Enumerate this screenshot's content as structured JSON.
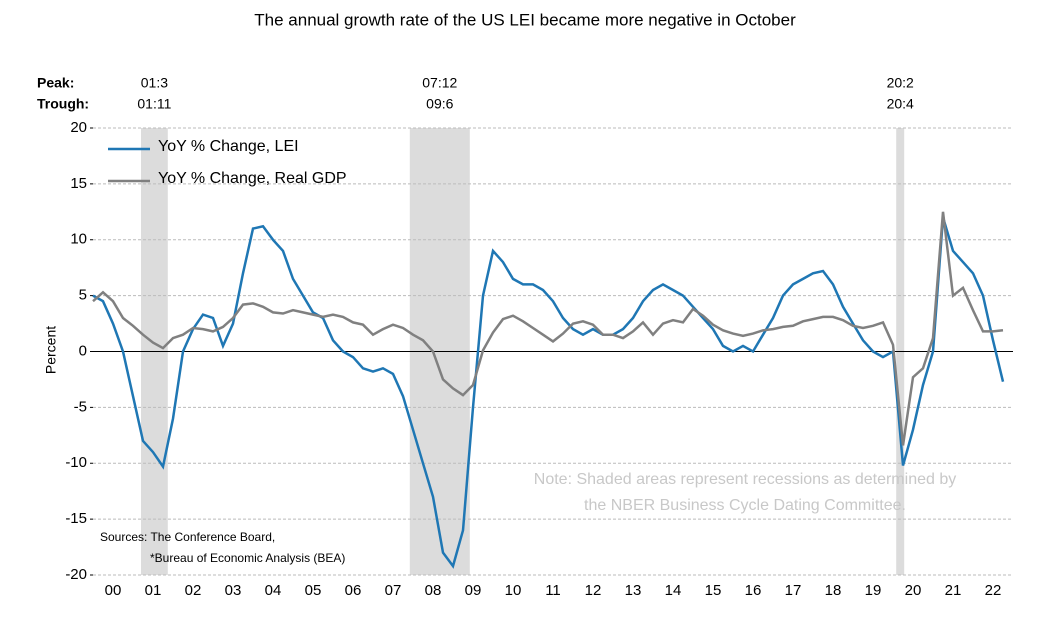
{
  "chart_data": {
    "type": "line",
    "title": "The annual growth rate of the US LEI became more negative in October",
    "y_label": "Percent",
    "peak_label": "Peak:",
    "trough_label": "Trough:",
    "recessions": [
      {
        "start": 2001.2,
        "end": 2001.87,
        "peak": "01:3",
        "trough": "01:11"
      },
      {
        "start": 2007.92,
        "end": 2009.42,
        "peak": "07:12",
        "trough": "09:6"
      },
      {
        "start": 2020.08,
        "end": 2020.28,
        "peak": "20:2",
        "trough": "20:4"
      }
    ],
    "note": [
      "Note: Shaded areas represent recessions as determined by",
      "the NBER Business Cycle Dating Committee."
    ],
    "sources": [
      "Sources: The Conference Board,",
      "*Bureau of Economic Analysis (BEA)"
    ],
    "xlim": [
      2000,
      2023
    ],
    "xticks": [
      {
        "value": 2000.5,
        "label": "00"
      },
      {
        "value": 2001.5,
        "label": "01"
      },
      {
        "value": 2002.5,
        "label": "02"
      },
      {
        "value": 2003.5,
        "label": "03"
      },
      {
        "value": 2004.5,
        "label": "04"
      },
      {
        "value": 2005.5,
        "label": "05"
      },
      {
        "value": 2006.5,
        "label": "06"
      },
      {
        "value": 2007.5,
        "label": "07"
      },
      {
        "value": 2008.5,
        "label": "08"
      },
      {
        "value": 2009.5,
        "label": "09"
      },
      {
        "value": 2010.5,
        "label": "10"
      },
      {
        "value": 2011.5,
        "label": "11"
      },
      {
        "value": 2012.5,
        "label": "12"
      },
      {
        "value": 2013.5,
        "label": "13"
      },
      {
        "value": 2014.5,
        "label": "14"
      },
      {
        "value": 2015.5,
        "label": "15"
      },
      {
        "value": 2016.5,
        "label": "16"
      },
      {
        "value": 2017.5,
        "label": "17"
      },
      {
        "value": 2018.5,
        "label": "18"
      },
      {
        "value": 2019.5,
        "label": "19"
      },
      {
        "value": 2020.5,
        "label": "20"
      },
      {
        "value": 2021.5,
        "label": "21"
      },
      {
        "value": 2022.5,
        "label": "22"
      }
    ],
    "ylim": [
      -20,
      20
    ],
    "yticks": [
      -20,
      -15,
      -10,
      -5,
      0,
      5,
      10,
      15,
      20
    ],
    "grid": true,
    "x": [
      2000,
      2000.25,
      2000.5,
      2000.75,
      2001,
      2001.25,
      2001.5,
      2001.75,
      2002,
      2002.25,
      2002.5,
      2002.75,
      2003,
      2003.25,
      2003.5,
      2003.75,
      2004,
      2004.25,
      2004.5,
      2004.75,
      2005,
      2005.25,
      2005.5,
      2005.75,
      2006,
      2006.25,
      2006.5,
      2006.75,
      2007,
      2007.25,
      2007.5,
      2007.75,
      2008,
      2008.25,
      2008.5,
      2008.75,
      2009,
      2009.25,
      2009.5,
      2009.75,
      2010,
      2010.25,
      2010.5,
      2010.75,
      2011,
      2011.25,
      2011.5,
      2011.75,
      2012,
      2012.25,
      2012.5,
      2012.75,
      2013,
      2013.25,
      2013.5,
      2013.75,
      2014,
      2014.25,
      2014.5,
      2014.75,
      2015,
      2015.25,
      2015.5,
      2015.75,
      2016,
      2016.25,
      2016.5,
      2016.75,
      2017,
      2017.25,
      2017.5,
      2017.75,
      2018,
      2018.25,
      2018.5,
      2018.75,
      2019,
      2019.25,
      2019.5,
      2019.75,
      2020,
      2020.25,
      2020.5,
      2020.75,
      2021,
      2021.25,
      2021.5,
      2021.75,
      2022,
      2022.25,
      2022.5,
      2022.75
    ],
    "series": [
      {
        "name": "YoY % Change, LEI",
        "color": "#1f77b4",
        "values": [
          5,
          4.5,
          2.5,
          0,
          -4,
          -8,
          -9,
          -10.3,
          -6,
          0,
          2,
          3.3,
          3,
          0.5,
          2.5,
          7,
          11,
          11.2,
          10,
          9,
          6.5,
          5,
          3.5,
          3,
          1,
          0,
          -0.5,
          -1.5,
          -1.8,
          -1.5,
          -2,
          -4,
          -7,
          -10,
          -13,
          -18,
          -19.2,
          -16,
          -5,
          5,
          9,
          8,
          6.5,
          6,
          6,
          5.5,
          4.5,
          3,
          2,
          1.5,
          2,
          1.5,
          1.5,
          2,
          3,
          4.5,
          5.5,
          6,
          5.5,
          5,
          4,
          3,
          2,
          0.5,
          0,
          0.5,
          0,
          1.5,
          3,
          5,
          6,
          6.5,
          7,
          7.2,
          6,
          4,
          2.5,
          1,
          0,
          -0.5,
          0,
          -10.2,
          -7,
          -3,
          0,
          12,
          9,
          8,
          7,
          5,
          1,
          -2.7
        ]
      },
      {
        "name": "YoY % Change, Real GDP",
        "color": "#808080",
        "values": [
          4.5,
          5.3,
          4.5,
          3,
          2.3,
          1.5,
          0.8,
          0.3,
          1.2,
          1.5,
          2.1,
          2,
          1.8,
          2.2,
          3,
          4.2,
          4.3,
          4,
          3.5,
          3.4,
          3.7,
          3.5,
          3.3,
          3.1,
          3.3,
          3.1,
          2.6,
          2.4,
          1.5,
          2,
          2.4,
          2.1,
          1.5,
          1,
          0,
          -2.5,
          -3.3,
          -3.9,
          -3,
          0.1,
          1.7,
          2.9,
          3.2,
          2.7,
          2.1,
          1.5,
          0.9,
          1.6,
          2.5,
          2.7,
          2.4,
          1.5,
          1.5,
          1.2,
          1.8,
          2.6,
          1.5,
          2.5,
          2.8,
          2.6,
          3.8,
          3.2,
          2.4,
          1.9,
          1.6,
          1.4,
          1.6,
          1.9,
          2,
          2.2,
          2.3,
          2.7,
          2.9,
          3.1,
          3.1,
          2.8,
          2.3,
          2.1,
          2.3,
          2.6,
          0.6,
          -8.4,
          -2.3,
          -1.5,
          1.2,
          12.5,
          5,
          5.7,
          3.7,
          1.8,
          1.8,
          1.9
        ]
      }
    ]
  }
}
